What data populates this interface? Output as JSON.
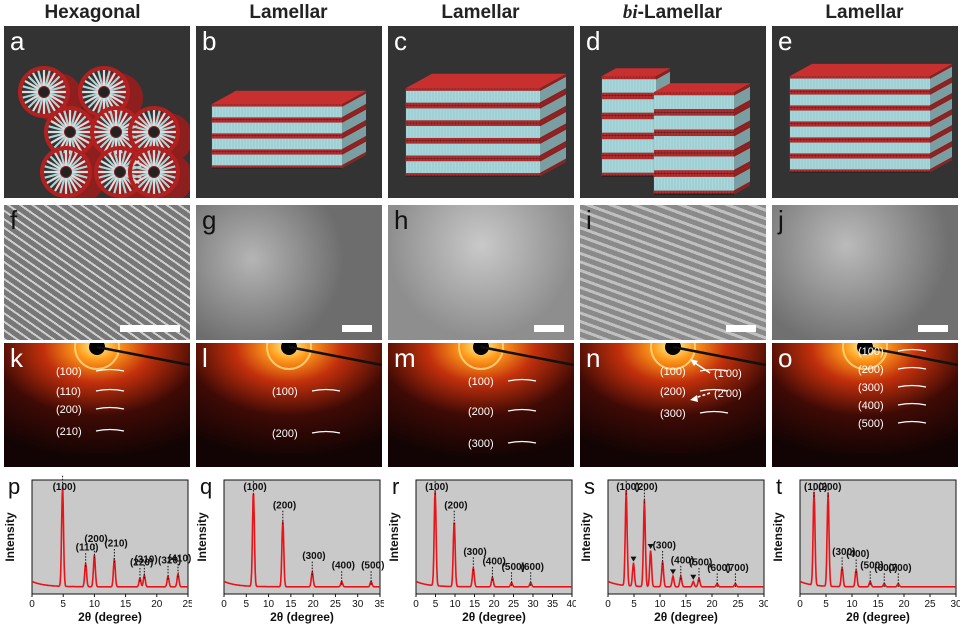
{
  "columns": [
    {
      "title": "Hexagonal",
      "italic": false
    },
    {
      "title": "Lamellar",
      "italic": false
    },
    {
      "title": "Lamellar",
      "italic": false
    },
    {
      "title": "-Lamellar",
      "prefix": "bi",
      "italic": true
    },
    {
      "title": "Lamellar",
      "italic": false
    }
  ],
  "models": {
    "labels": [
      "a",
      "b",
      "c",
      "d",
      "e"
    ]
  },
  "sem": {
    "labels": [
      "f",
      "g",
      "h",
      "i",
      "j"
    ]
  },
  "saxs": {
    "labels": [
      "k",
      "l",
      "m",
      "n",
      "o"
    ],
    "rings": [
      [
        "(100)",
        "(110)",
        "(200)",
        "(210)"
      ],
      [
        "(100)",
        "(200)"
      ],
      [
        "(100)",
        "(200)",
        "(300)"
      ],
      [
        "(100)",
        "(200)",
        "(300)",
        "(1'00)",
        "(2'00)"
      ],
      [
        "(100)",
        "(200)",
        "(300)",
        "(400)",
        "(500)"
      ]
    ]
  },
  "xrd_labels": [
    "p",
    "q",
    "r",
    "s",
    "t"
  ],
  "colors": {
    "curve": "#e8141a",
    "plot_bg": "#c9c9c9",
    "model_bg": "#333333",
    "rod_red": "#b32020",
    "rod_cyan": "#a8d8dc"
  },
  "chart_data": [
    {
      "type": "line",
      "panel": "p",
      "xlabel": "2θ (degree)",
      "ylabel": "Intensity",
      "xlim": [
        0,
        25
      ],
      "xticks": [
        0,
        5,
        10,
        15,
        20,
        25
      ],
      "peaks": [
        {
          "x": 4.9,
          "h": 0.95,
          "label": "(100)"
        },
        {
          "x": 8.6,
          "h": 0.22,
          "label": "(110)"
        },
        {
          "x": 10.0,
          "h": 0.3,
          "label": "(200)"
        },
        {
          "x": 13.2,
          "h": 0.26,
          "label": "(210)"
        },
        {
          "x": 17.3,
          "h": 0.08,
          "label": "(220)"
        },
        {
          "x": 18.0,
          "h": 0.11,
          "label": "(310)"
        },
        {
          "x": 21.8,
          "h": 0.1,
          "label": "(320)"
        },
        {
          "x": 23.4,
          "h": 0.12,
          "label": "(410)"
        }
      ]
    },
    {
      "type": "line",
      "panel": "q",
      "xlabel": "2θ (degree)",
      "ylabel": "Intensity",
      "xlim": [
        0,
        35
      ],
      "xticks": [
        0,
        5,
        10,
        15,
        20,
        25,
        30,
        35
      ],
      "peaks": [
        {
          "x": 6.6,
          "h": 0.9,
          "label": "(100)"
        },
        {
          "x": 13.2,
          "h": 0.62,
          "label": "(200)"
        },
        {
          "x": 19.8,
          "h": 0.14,
          "label": "(300)"
        },
        {
          "x": 26.4,
          "h": 0.05,
          "label": "(400)"
        },
        {
          "x": 33.0,
          "h": 0.05,
          "label": "(500)"
        }
      ]
    },
    {
      "type": "line",
      "panel": "r",
      "xlabel": "2θ (degree)",
      "ylabel": "Intensity",
      "xlim": [
        0,
        40
      ],
      "xticks": [
        0,
        5,
        10,
        15,
        20,
        25,
        30,
        35,
        40
      ],
      "peaks": [
        {
          "x": 4.9,
          "h": 0.9,
          "label": "(100)"
        },
        {
          "x": 9.8,
          "h": 0.62,
          "label": "(200)"
        },
        {
          "x": 14.7,
          "h": 0.18,
          "label": "(300)"
        },
        {
          "x": 19.6,
          "h": 0.09,
          "label": "(400)"
        },
        {
          "x": 24.5,
          "h": 0.04,
          "label": "(500)"
        },
        {
          "x": 29.4,
          "h": 0.04,
          "label": "(600)"
        }
      ]
    },
    {
      "type": "line",
      "panel": "s",
      "xlabel": "2θ (degree)",
      "ylabel": "Intensity",
      "xlim": [
        0,
        30
      ],
      "xticks": [
        0,
        5,
        10,
        15,
        20,
        25,
        30
      ],
      "peaks": [
        {
          "x": 3.5,
          "h": 0.9,
          "label": "(100)"
        },
        {
          "x": 4.9,
          "h": 0.22,
          "label": ""
        },
        {
          "x": 7.0,
          "h": 0.82,
          "label": "(200)"
        },
        {
          "x": 8.2,
          "h": 0.34,
          "label": ""
        },
        {
          "x": 10.5,
          "h": 0.24,
          "label": "(300)"
        },
        {
          "x": 12.5,
          "h": 0.1,
          "label": ""
        },
        {
          "x": 14.0,
          "h": 0.1,
          "label": "(400)"
        },
        {
          "x": 16.4,
          "h": 0.05,
          "label": ""
        },
        {
          "x": 17.5,
          "h": 0.08,
          "label": "(500)"
        },
        {
          "x": 21.0,
          "h": 0.03,
          "label": "(600)"
        },
        {
          "x": 24.5,
          "h": 0.03,
          "label": "(700)"
        }
      ]
    },
    {
      "type": "line",
      "panel": "t",
      "xlabel": "2θ (degree)",
      "ylabel": "Intensity",
      "xlim": [
        0,
        30
      ],
      "xticks": [
        0,
        5,
        10,
        15,
        20,
        25,
        30
      ],
      "peaks": [
        {
          "x": 2.7,
          "h": 0.88,
          "label": "(100)"
        },
        {
          "x": 5.4,
          "h": 0.88,
          "label": "(200)"
        },
        {
          "x": 8.1,
          "h": 0.18,
          "label": "(300)"
        },
        {
          "x": 10.8,
          "h": 0.16,
          "label": "(400)"
        },
        {
          "x": 13.5,
          "h": 0.05,
          "label": "(500)"
        },
        {
          "x": 16.2,
          "h": 0.03,
          "label": "(600)"
        },
        {
          "x": 18.9,
          "h": 0.03,
          "label": "(700)"
        }
      ]
    }
  ]
}
